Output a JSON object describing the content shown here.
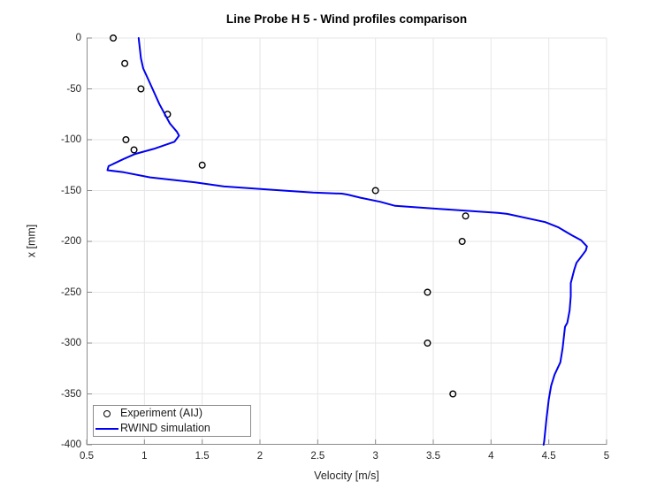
{
  "title": "Line Probe H 5 - Wind profiles comparison",
  "axes": {
    "xlabel": "Velocity [m/s]",
    "ylabel": "x [mm]",
    "x_tick_labels": [
      "0.5",
      "1",
      "1.5",
      "2",
      "2.5",
      "3",
      "3.5",
      "4",
      "4.5",
      "5"
    ],
    "y_tick_labels": [
      "0",
      "-50",
      "-100",
      "-150",
      "-200",
      "-250",
      "-300",
      "-350",
      "-400"
    ]
  },
  "legend": {
    "items": [
      {
        "label": "Experiment (AIJ)",
        "marker": "circle-icon"
      },
      {
        "label": "RWIND simulation",
        "marker": "line-icon"
      }
    ],
    "position": "southwest"
  },
  "colors": {
    "simulation_line": "#0000f0",
    "experiment_marker": "#000000",
    "grid": "#e6e6e6",
    "axis": "#8c8c8c",
    "tick_text": "#262626",
    "background": "#ffffff"
  },
  "chart_data": {
    "type": "line",
    "title": "Line Probe H 5 - Wind profiles comparison",
    "xlabel": "Velocity [m/s]",
    "ylabel": "x [mm]",
    "xlim": [
      0.5,
      5
    ],
    "ylim": [
      -400,
      0
    ],
    "grid": true,
    "legend_position": "southwest",
    "x_ticks": [
      0.5,
      1,
      1.5,
      2,
      2.5,
      3,
      3.5,
      4,
      4.5,
      5
    ],
    "y_ticks": [
      0,
      -50,
      -100,
      -150,
      -200,
      -250,
      -300,
      -350,
      -400
    ],
    "series": [
      {
        "name": "Experiment (AIJ)",
        "type": "scatter",
        "marker": "open-circle",
        "color": "#000000",
        "points": [
          [
            0.73,
            0
          ],
          [
            0.83,
            -25
          ],
          [
            0.97,
            -50
          ],
          [
            1.2,
            -75
          ],
          [
            0.84,
            -100
          ],
          [
            0.91,
            -110
          ],
          [
            1.5,
            -125
          ],
          [
            3.0,
            -150
          ],
          [
            3.78,
            -175
          ],
          [
            3.75,
            -200
          ],
          [
            3.45,
            -250
          ],
          [
            3.45,
            -300
          ],
          [
            3.67,
            -350
          ]
        ]
      },
      {
        "name": "RWIND simulation",
        "type": "line",
        "color": "#0000f0",
        "points": [
          [
            0.95,
            0
          ],
          [
            0.97,
            -20
          ],
          [
            0.99,
            -30
          ],
          [
            1.03,
            -40
          ],
          [
            1.07,
            -50
          ],
          [
            1.13,
            -65
          ],
          [
            1.22,
            -84
          ],
          [
            1.28,
            -92
          ],
          [
            1.3,
            -96
          ],
          [
            1.26,
            -102
          ],
          [
            1.08,
            -109
          ],
          [
            0.92,
            -114
          ],
          [
            0.82,
            -119
          ],
          [
            0.69,
            -126
          ],
          [
            0.68,
            -130
          ],
          [
            0.82,
            -132
          ],
          [
            1.05,
            -137
          ],
          [
            1.44,
            -142
          ],
          [
            1.69,
            -146
          ],
          [
            1.95,
            -148
          ],
          [
            2.2,
            -150
          ],
          [
            2.46,
            -152
          ],
          [
            2.71,
            -153
          ],
          [
            2.76,
            -154
          ],
          [
            2.87,
            -157
          ],
          [
            3.04,
            -161
          ],
          [
            3.17,
            -165
          ],
          [
            3.55,
            -168
          ],
          [
            4.06,
            -172
          ],
          [
            4.14,
            -173
          ],
          [
            4.47,
            -181
          ],
          [
            4.58,
            -186
          ],
          [
            4.7,
            -194
          ],
          [
            4.78,
            -199
          ],
          [
            4.83,
            -205
          ],
          [
            4.82,
            -209
          ],
          [
            4.78,
            -215
          ],
          [
            4.74,
            -221
          ],
          [
            4.72,
            -228
          ],
          [
            4.69,
            -241
          ],
          [
            4.69,
            -254
          ],
          [
            4.68,
            -268
          ],
          [
            4.66,
            -280
          ],
          [
            4.64,
            -284
          ],
          [
            4.62,
            -305
          ],
          [
            4.6,
            -319
          ],
          [
            4.55,
            -331
          ],
          [
            4.52,
            -342
          ],
          [
            4.5,
            -355
          ],
          [
            4.48,
            -374
          ],
          [
            4.46,
            -397
          ],
          [
            4.455,
            -400
          ]
        ]
      }
    ]
  }
}
